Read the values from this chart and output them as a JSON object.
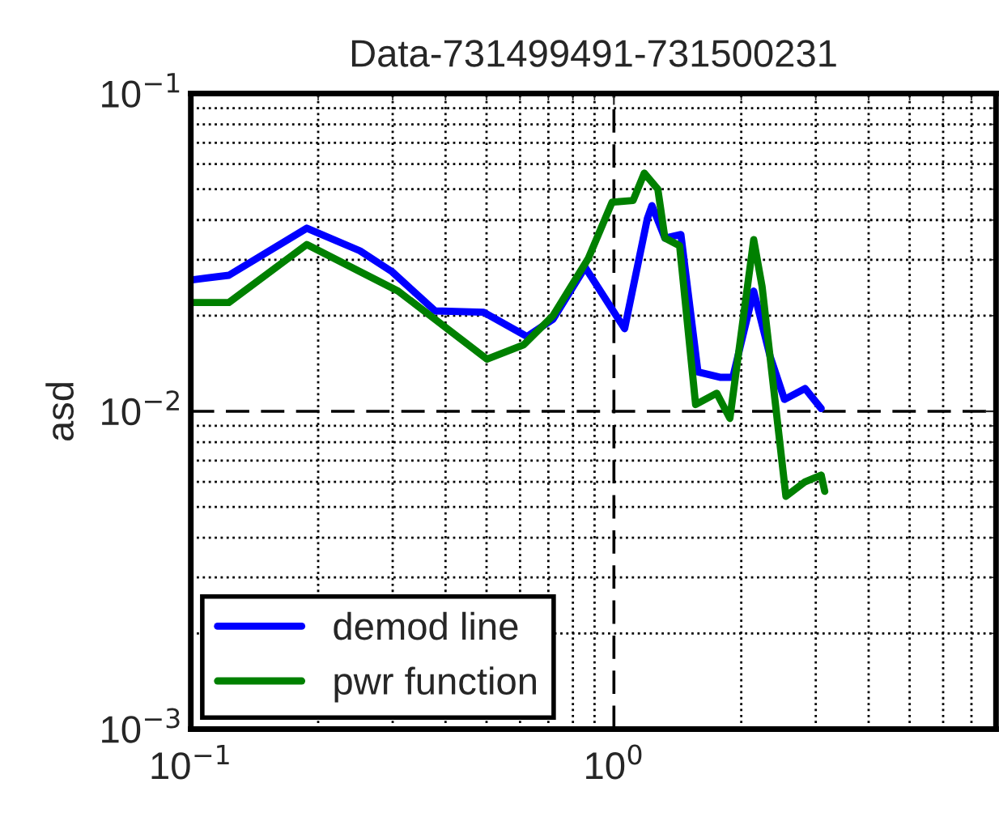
{
  "chart_data": {
    "type": "line",
    "title": "Data-731499491-731500231",
    "ylabel": "asd",
    "log": "xy",
    "xlim": [
      0.1,
      8
    ],
    "ylim": [
      0.001,
      0.1
    ],
    "xticks": [
      {
        "value": 0.1,
        "label": "10$^{−1}$"
      },
      {
        "value": 1,
        "label": "10$^{0}$"
      }
    ],
    "yticks": [
      {
        "value": 0.001,
        "label": "10$^{−3}$"
      },
      {
        "value": 0.01,
        "label": "10$^{−2}$"
      },
      {
        "value": 0.1,
        "label": "10$^{−1}$"
      }
    ],
    "grid": true,
    "legend": "bottom left",
    "marker": "none",
    "line_style": "solid",
    "series": [
      {
        "name": "demod line",
        "color": "#0000ff",
        "x": [
          0.1,
          0.123,
          0.188,
          0.251,
          0.299,
          0.378,
          0.492,
          0.623,
          0.718,
          0.855,
          1.06,
          1.2,
          1.23,
          1.32,
          1.44,
          1.58,
          1.78,
          1.91,
          2.14,
          2.34,
          2.53,
          2.83,
          3.09
        ],
        "values": [
          0.0259,
          0.0268,
          0.0377,
          0.032,
          0.0275,
          0.0207,
          0.0205,
          0.0172,
          0.0195,
          0.0284,
          0.0182,
          0.0405,
          0.0444,
          0.0351,
          0.036,
          0.0133,
          0.0128,
          0.0128,
          0.0239,
          0.0149,
          0.0109,
          0.0118,
          0.0102
        ]
      },
      {
        "name": "pwr function",
        "color": "#008000",
        "x": [
          0.1,
          0.123,
          0.188,
          0.309,
          0.501,
          0.612,
          0.718,
          0.869,
          0.99,
          1.11,
          1.18,
          1.27,
          1.32,
          1.43,
          1.56,
          1.75,
          1.88,
          2.14,
          2.24,
          2.55,
          2.83,
          3.09,
          3.15
        ],
        "values": [
          0.022,
          0.022,
          0.0335,
          0.0239,
          0.0146,
          0.0162,
          0.02,
          0.0302,
          0.0455,
          0.0461,
          0.0562,
          0.05,
          0.0351,
          0.0332,
          0.0105,
          0.0114,
          0.0095,
          0.0347,
          0.0247,
          0.0054,
          0.006,
          0.0063,
          0.0056
        ]
      }
    ]
  }
}
